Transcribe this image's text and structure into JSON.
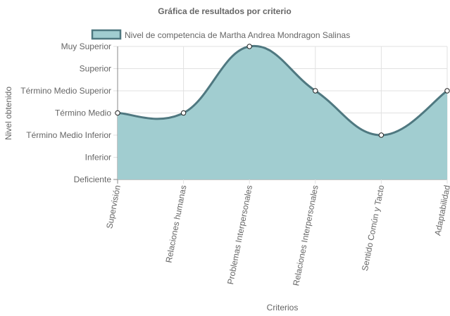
{
  "chart_data": {
    "type": "area",
    "title": "Gráfica de resultados por criterio",
    "xlabel": "Criterios",
    "ylabel": "Nivel obtenido",
    "categories": [
      "Supervisión",
      "Relaciones humanas",
      "Problemas Interpersonales",
      "Relaciones Interpersonales",
      "Sentido Común y Tacto",
      "Adaptabilidad"
    ],
    "y_levels": [
      "Deficiente",
      "Inferior",
      "Término Medio Inferior",
      "Término Medio",
      "Término Medio Superior",
      "Superior",
      "Muy Superior"
    ],
    "ylim": [
      0,
      6
    ],
    "series": [
      {
        "name": "Nivel de competencia de Martha Andrea Mondragon Salinas",
        "values": [
          3,
          3,
          6,
          4,
          2,
          4
        ],
        "fill_color": "#a1cdd0",
        "line_color": "#4f7880"
      }
    ],
    "legend": "top",
    "grid": true,
    "colors": {
      "grid": "#e1e1e1",
      "axis": "#888888",
      "point_fill": "#ffffff",
      "point_stroke": "#222222"
    }
  }
}
